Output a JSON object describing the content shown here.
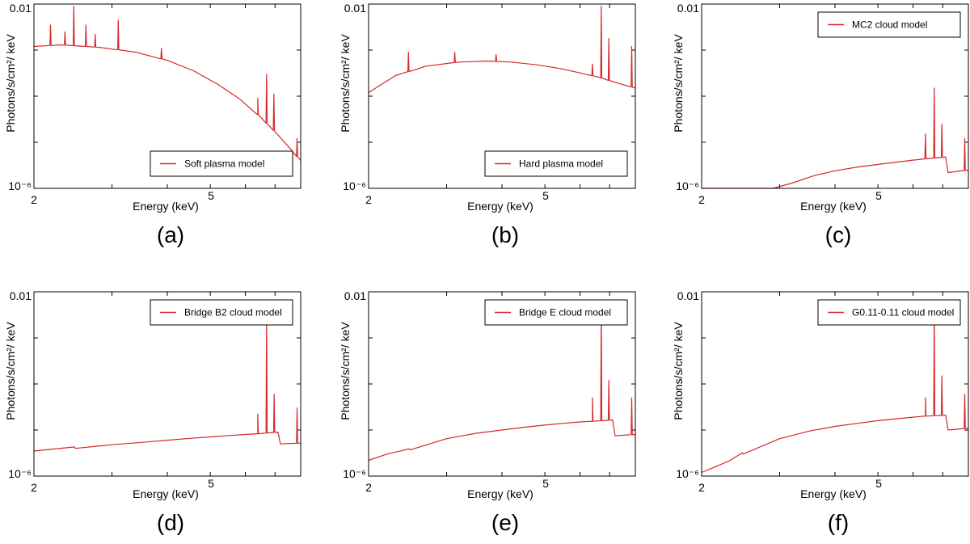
{
  "figure": {
    "layout": "2 rows x 3 columns"
  },
  "chart_data": [
    {
      "id": "a",
      "type": "line",
      "panel_label": "(a)",
      "xlabel": "Energy (keV)",
      "ylabel": "Photons/s/cm²/ keV",
      "xscale": "log",
      "yscale": "log",
      "xlim": [
        2,
        8
      ],
      "ylim": [
        1e-06,
        0.01
      ],
      "xticks": [
        {
          "value": 2,
          "label": "2"
        },
        {
          "value": 5,
          "label": "5"
        }
      ],
      "yticks": [
        {
          "value": 0.01,
          "label": "0.01"
        },
        {
          "value": 1e-06,
          "label": "10⁻⁶"
        }
      ],
      "legend": {
        "label": "Soft plasma model",
        "position": "lower-right"
      },
      "series": [
        {
          "name": "Soft plasma model",
          "color": "#d62728",
          "continuum": {
            "x": [
              2.0,
              2.3,
              2.8,
              3.4,
              4.0,
              4.6,
              5.2,
              5.8,
              6.4,
              7.0,
              7.6,
              8.0
            ],
            "y": [
              0.0012,
              0.0013,
              0.00115,
              0.0009,
              0.0006,
              0.00035,
              0.00018,
              9e-05,
              4e-05,
              1.7e-05,
              7e-06,
              4e-06
            ]
          },
          "lines": [
            {
              "x": 2.18,
              "y": 0.0035
            },
            {
              "x": 2.35,
              "y": 0.0025
            },
            {
              "x": 2.46,
              "y": 0.009
            },
            {
              "x": 2.62,
              "y": 0.0035
            },
            {
              "x": 2.75,
              "y": 0.0022
            },
            {
              "x": 3.1,
              "y": 0.0045
            },
            {
              "x": 3.88,
              "y": 0.0011
            },
            {
              "x": 6.4,
              "y": 9e-05
            },
            {
              "x": 6.7,
              "y": 0.0003
            },
            {
              "x": 6.96,
              "y": 0.00011
            },
            {
              "x": 7.85,
              "y": 1.2e-05
            }
          ]
        }
      ]
    },
    {
      "id": "b",
      "type": "line",
      "panel_label": "(b)",
      "xlabel": "Energy (keV)",
      "ylabel": "Photons/s/cm²/ keV",
      "xscale": "log",
      "yscale": "log",
      "xlim": [
        2,
        8
      ],
      "ylim": [
        1e-06,
        0.01
      ],
      "xticks": [
        {
          "value": 2,
          "label": "2"
        },
        {
          "value": 5,
          "label": "5"
        }
      ],
      "yticks": [
        {
          "value": 0.01,
          "label": "0.01"
        },
        {
          "value": 1e-06,
          "label": "10⁻⁶"
        }
      ],
      "legend": {
        "label": "Hard plasma model",
        "position": "lower-right"
      },
      "series": [
        {
          "name": "Hard plasma model",
          "color": "#d62728",
          "continuum": {
            "x": [
              2.0,
              2.3,
              2.7,
              3.2,
              3.7,
              4.2,
              4.8,
              5.4,
              6.0,
              6.6,
              7.2,
              8.0
            ],
            "y": [
              0.00012,
              0.00028,
              0.00045,
              0.00055,
              0.00058,
              0.00055,
              0.00048,
              0.0004,
              0.00032,
              0.00026,
              0.0002,
              0.00015
            ]
          },
          "lines": [
            {
              "x": 2.46,
              "y": 0.0009
            },
            {
              "x": 3.13,
              "y": 0.0009
            },
            {
              "x": 3.88,
              "y": 0.0008
            },
            {
              "x": 6.4,
              "y": 0.0005
            },
            {
              "x": 6.7,
              "y": 0.009
            },
            {
              "x": 6.97,
              "y": 0.0018
            },
            {
              "x": 7.85,
              "y": 0.0012
            }
          ]
        }
      ]
    },
    {
      "id": "c",
      "type": "line",
      "panel_label": "(c)",
      "xlabel": "Energy (keV)",
      "ylabel": "Photons/s/cm²/ keV",
      "xscale": "log",
      "yscale": "log",
      "xlim": [
        2,
        8
      ],
      "ylim": [
        1e-06,
        0.01
      ],
      "xticks": [
        {
          "value": 2,
          "label": "2"
        },
        {
          "value": 5,
          "label": "5"
        }
      ],
      "yticks": [
        {
          "value": 0.01,
          "label": "0.01"
        },
        {
          "value": 1e-06,
          "label": "10⁻⁶"
        }
      ],
      "legend": {
        "label": "MC2 cloud model",
        "position": "top-right"
      },
      "series": [
        {
          "name": "MC2 cloud model",
          "color": "#d62728",
          "continuum": {
            "x": [
              2.0,
              2.9,
              3.2,
              3.6,
              4.0,
              4.5,
              5.0,
              5.5,
              6.0,
              6.3,
              7.11,
              7.2,
              8.0
            ],
            "y": [
              1e-06,
              1e-06,
              1.3e-06,
              1.9e-06,
              2.4e-06,
              2.9e-06,
              3.3e-06,
              3.7e-06,
              4.1e-06,
              4.3e-06,
              4.8e-06,
              2.2e-06,
              2.5e-06
            ]
          },
          "lines": [
            {
              "x": 6.4,
              "y": 1.5e-05
            },
            {
              "x": 6.7,
              "y": 0.00015
            },
            {
              "x": 6.97,
              "y": 2.5e-05
            },
            {
              "x": 7.85,
              "y": 1.2e-05
            }
          ]
        }
      ]
    },
    {
      "id": "d",
      "type": "line",
      "panel_label": "(d)",
      "xlabel": "Energy (keV)",
      "ylabel": "Photons/s/cm²/ keV",
      "xscale": "log",
      "yscale": "log",
      "xlim": [
        2,
        8
      ],
      "ylim": [
        1e-06,
        0.01
      ],
      "xticks": [
        {
          "value": 2,
          "label": "2"
        },
        {
          "value": 5,
          "label": "5"
        }
      ],
      "yticks": [
        {
          "value": 0.01,
          "label": "0.01"
        },
        {
          "value": 1e-06,
          "label": "10⁻⁶"
        }
      ],
      "legend": {
        "label": "Bridge B2 cloud model",
        "position": "top-right"
      },
      "series": [
        {
          "name": "Bridge B2 cloud model",
          "color": "#d62728",
          "continuum": {
            "x": [
              2.0,
              2.47,
              2.48,
              3.0,
              3.5,
              4.0,
              4.5,
              5.0,
              5.5,
              6.0,
              6.4,
              7.11,
              7.2,
              8.0
            ],
            "y": [
              3.5e-06,
              4.3e-06,
              4e-06,
              4.8e-06,
              5.4e-06,
              6e-06,
              6.6e-06,
              7.1e-06,
              7.6e-06,
              8e-06,
              8.3e-06,
              9e-06,
              5e-06,
              5.2e-06
            ]
          },
          "lines": [
            {
              "x": 6.4,
              "y": 2.2e-05
            },
            {
              "x": 6.7,
              "y": 0.0025
            },
            {
              "x": 6.97,
              "y": 6e-05
            },
            {
              "x": 7.85,
              "y": 3e-05
            }
          ]
        }
      ]
    },
    {
      "id": "e",
      "type": "line",
      "panel_label": "(e)",
      "xlabel": "Energy (keV)",
      "ylabel": "Photons/s/cm²/ keV",
      "xscale": "log",
      "yscale": "log",
      "xlim": [
        2,
        8
      ],
      "ylim": [
        1e-06,
        0.01
      ],
      "xticks": [
        {
          "value": 2,
          "label": "2"
        },
        {
          "value": 5,
          "label": "5"
        }
      ],
      "yticks": [
        {
          "value": 0.01,
          "label": "0.01"
        },
        {
          "value": 1e-06,
          "label": "10⁻⁶"
        }
      ],
      "legend": {
        "label": "Bridge E cloud model",
        "position": "top-right"
      },
      "series": [
        {
          "name": "Bridge E cloud model",
          "color": "#d62728",
          "continuum": {
            "x": [
              2.0,
              2.2,
              2.47,
              2.48,
              3.0,
              3.5,
              4.0,
              4.5,
              5.0,
              5.5,
              6.0,
              6.4,
              7.11,
              7.2,
              8.0
            ],
            "y": [
              2.2e-06,
              3e-06,
              3.9e-06,
              3.7e-06,
              6.5e-06,
              8.5e-06,
              1e-05,
              1.15e-05,
              1.28e-05,
              1.4e-05,
              1.5e-05,
              1.55e-05,
              1.65e-05,
              7.5e-06,
              8e-06
            ]
          },
          "lines": [
            {
              "x": 6.4,
              "y": 5e-05
            },
            {
              "x": 6.7,
              "y": 0.0045
            },
            {
              "x": 6.97,
              "y": 0.00012
            },
            {
              "x": 7.85,
              "y": 5e-05
            }
          ]
        }
      ]
    },
    {
      "id": "f",
      "type": "line",
      "panel_label": "(f)",
      "xlabel": "Energy (keV)",
      "ylabel": "Photons/s/cm²/ keV",
      "xscale": "log",
      "yscale": "log",
      "xlim": [
        2,
        8
      ],
      "ylim": [
        1e-06,
        0.01
      ],
      "xticks": [
        {
          "value": 2,
          "label": "2"
        },
        {
          "value": 5,
          "label": "5"
        }
      ],
      "yticks": [
        {
          "value": 0.01,
          "label": "0.01"
        },
        {
          "value": 1e-06,
          "label": "10⁻⁶"
        }
      ],
      "legend": {
        "label": "G0.11-0.11 cloud model",
        "position": "top-right"
      },
      "series": [
        {
          "name": "G0.11-0.11 cloud model",
          "color": "#d62728",
          "continuum": {
            "x": [
              2.0,
              2.3,
              2.47,
              2.48,
              3.0,
              3.5,
              4.0,
              4.5,
              5.0,
              5.5,
              6.0,
              6.4,
              7.11,
              7.2,
              8.0
            ],
            "y": [
              1.2e-06,
              2.1e-06,
              3.2e-06,
              3e-06,
              6.5e-06,
              9.5e-06,
              1.2e-05,
              1.4e-05,
              1.6e-05,
              1.75e-05,
              1.9e-05,
              2e-05,
              2.1e-05,
              1e-05,
              1.1e-05
            ]
          },
          "lines": [
            {
              "x": 6.4,
              "y": 5e-05
            },
            {
              "x": 6.7,
              "y": 0.0033
            },
            {
              "x": 6.97,
              "y": 0.00015
            },
            {
              "x": 7.85,
              "y": 6e-05
            }
          ]
        }
      ]
    }
  ]
}
